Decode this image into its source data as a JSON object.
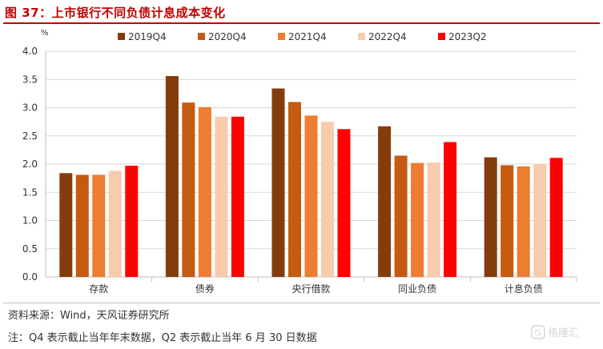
{
  "title": "图 37：上市银行不同负债计息成本变化",
  "source": "资料来源：Wind，天风证券研究所",
  "note": "注：Q4 表示截止当年年末数据，Q2 表示截止当年 6 月 30 日数据",
  "chart_data": {
    "type": "bar",
    "title": "",
    "xlabel": "",
    "ylabel": "%",
    "ylim": [
      0,
      4.0
    ],
    "yticks": [
      "0.0",
      "0.5",
      "1.0",
      "1.5",
      "2.0",
      "2.5",
      "3.0",
      "3.5",
      "4.0"
    ],
    "grid": true,
    "legend_position": "top",
    "categories": [
      "存款",
      "债券",
      "央行借款",
      "同业负债",
      "计息负债"
    ],
    "series": [
      {
        "name": "2019Q4",
        "color": "#843c0c",
        "values": [
          1.84,
          3.56,
          3.34,
          2.67,
          2.12
        ]
      },
      {
        "name": "2020Q4",
        "color": "#c55a11",
        "values": [
          1.81,
          3.09,
          3.1,
          2.15,
          1.98
        ]
      },
      {
        "name": "2021Q4",
        "color": "#ed7d31",
        "values": [
          1.81,
          3.01,
          2.86,
          2.02,
          1.96
        ]
      },
      {
        "name": "2022Q4",
        "color": "#f8cbad",
        "values": [
          1.88,
          2.84,
          2.75,
          2.03,
          2.0
        ]
      },
      {
        "name": "2023Q2",
        "color": "#ff0000",
        "values": [
          1.97,
          2.84,
          2.62,
          2.39,
          2.11
        ]
      }
    ]
  },
  "watermark": {
    "text": "格隆汇"
  }
}
